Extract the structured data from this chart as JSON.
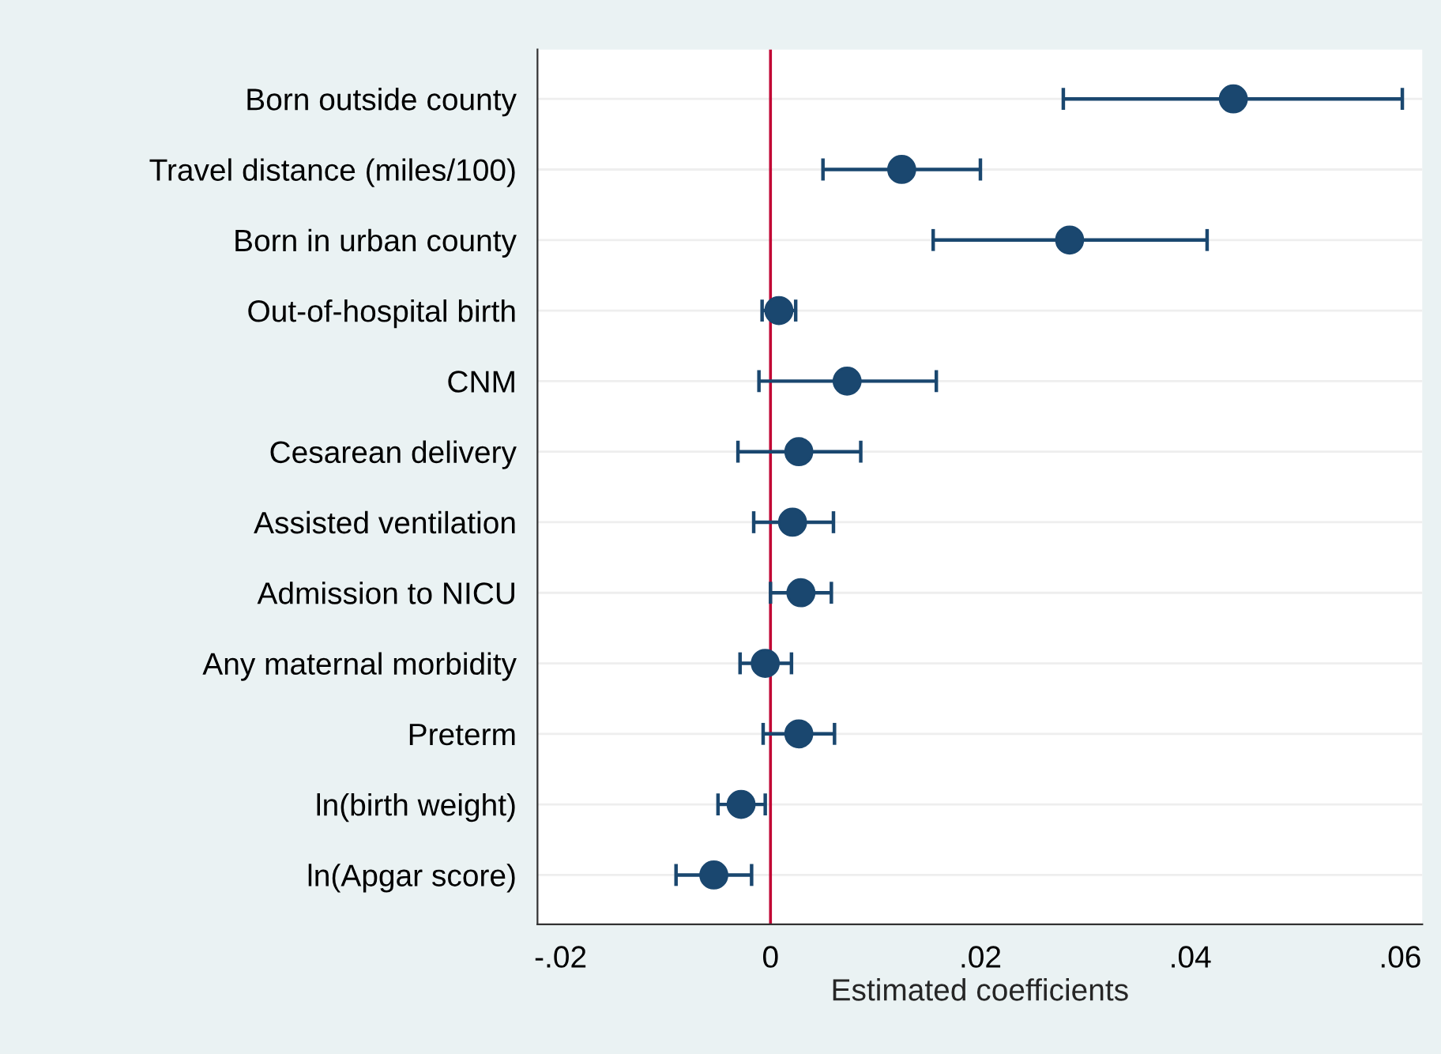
{
  "chart_data": {
    "type": "scatter",
    "orientation": "horizontal",
    "xlabel": "Estimated coefficients",
    "categories": [
      "Born outside county",
      "Travel distance (miles/100)",
      "Born in urban county",
      "Out-of-hospital birth",
      "CNM",
      "Cesarean delivery",
      "Assisted ventilation",
      "Admission to NICU",
      "Any maternal morbidity",
      "Preterm",
      "ln(birth weight)",
      "ln(Apgar score)"
    ],
    "series": [
      {
        "color": "#1a476f",
        "values": [
          0.0441,
          0.0125,
          0.0285,
          0.0008,
          0.0073,
          0.0027,
          0.0021,
          0.0029,
          -0.0005,
          0.0027,
          -0.0028,
          -0.0054
        ],
        "errors": [
          [
            0.0279,
            0.0602
          ],
          [
            0.005,
            0.02
          ],
          [
            0.0155,
            0.0416
          ],
          [
            -0.0008,
            0.0024
          ],
          [
            -0.0011,
            0.0158
          ],
          [
            -0.0031,
            0.0086
          ],
          [
            -0.0016,
            0.006
          ],
          [
            0.0,
            0.0058
          ],
          [
            -0.0029,
            0.002
          ],
          [
            -0.0007,
            0.0061
          ],
          [
            -0.005,
            -0.0005
          ],
          [
            -0.009,
            -0.0018
          ]
        ]
      }
    ],
    "xlim": [
      -0.0222,
      0.0621
    ],
    "xticks": [
      {
        "value": -0.02,
        "label": "-.02"
      },
      {
        "value": 0,
        "label": "0"
      },
      {
        "value": 0.02,
        "label": ".02"
      },
      {
        "value": 0.04,
        "label": ".04"
      },
      {
        "value": 0.06,
        "label": ".06"
      }
    ],
    "ref_lines": [
      {
        "axis": "x",
        "value": 0,
        "color": "#c10534"
      }
    ],
    "grid": "y",
    "marker": "circle",
    "legend": false
  }
}
